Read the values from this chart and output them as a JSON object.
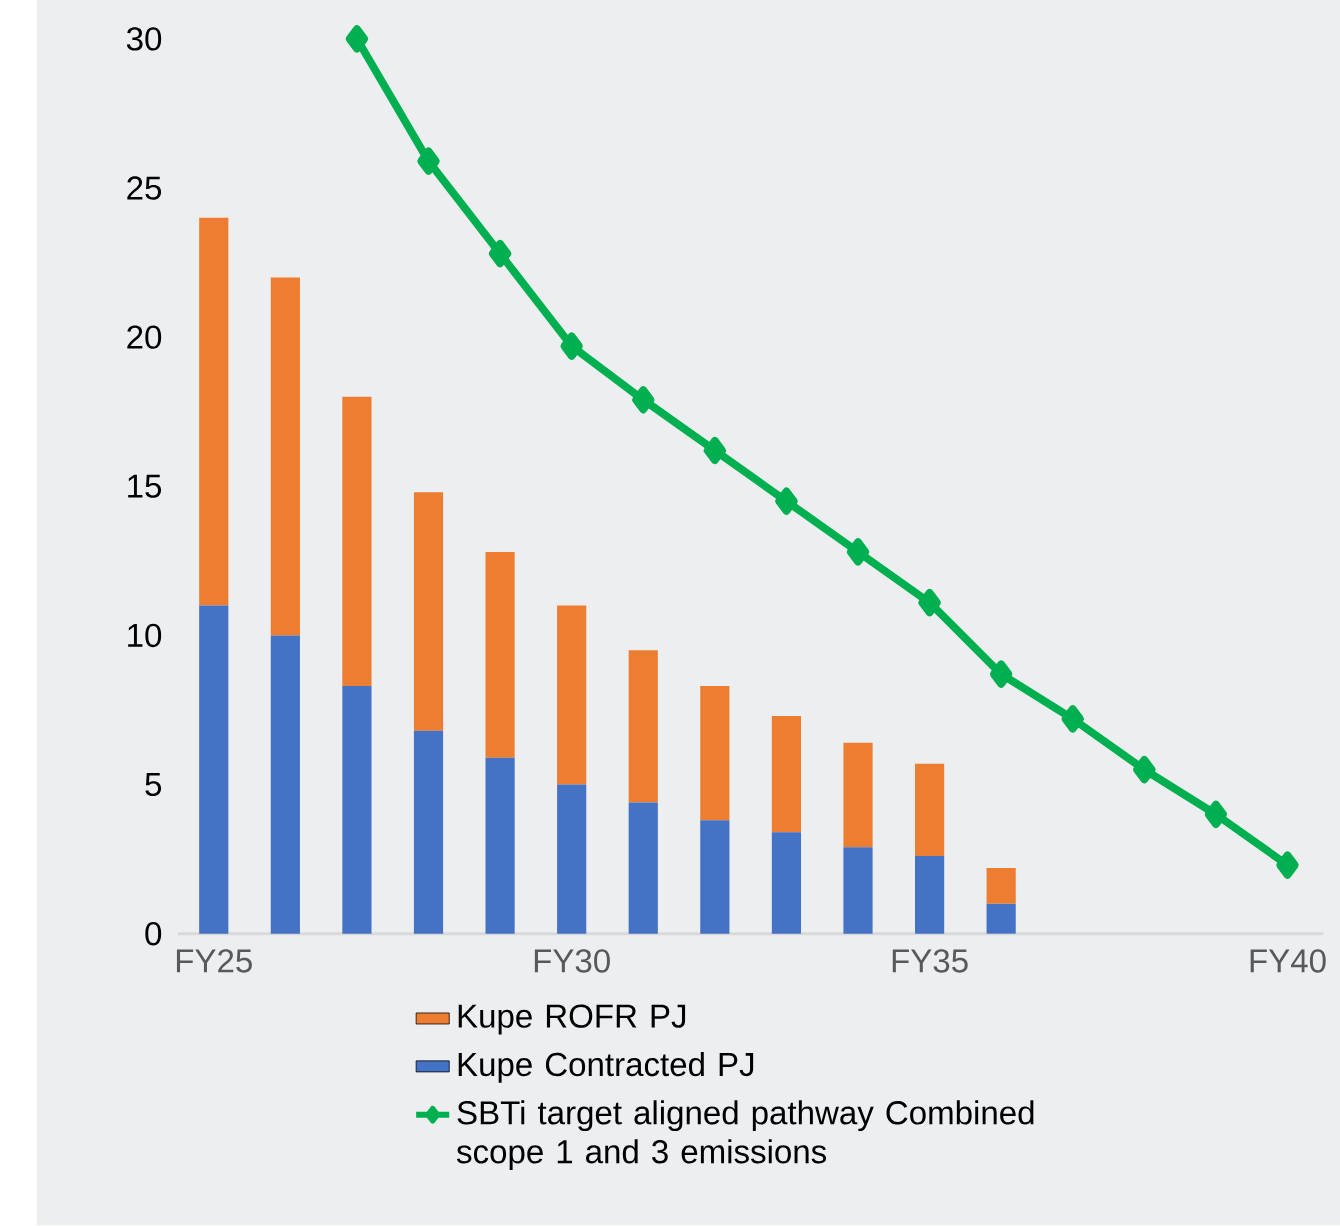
{
  "chart_data": {
    "type": "bar",
    "stacked": true,
    "categories": [
      "FY25",
      null,
      null,
      null,
      null,
      "FY30",
      null,
      null,
      null,
      null,
      "FY35",
      null,
      null,
      null,
      null,
      "FY40"
    ],
    "series": [
      {
        "name": "Kupe Contracted PJ",
        "color": "#4472c4",
        "values": [
          11.0,
          10.0,
          8.3,
          6.8,
          5.9,
          5.0,
          4.4,
          3.8,
          3.4,
          2.9,
          2.6,
          1.0,
          null,
          null,
          null,
          null
        ]
      },
      {
        "name": "Kupe ROFR PJ",
        "color": "#ed7d31",
        "values": [
          13.0,
          12.0,
          9.7,
          8.0,
          6.9,
          6.0,
          5.1,
          4.5,
          3.9,
          3.5,
          3.1,
          1.2,
          null,
          null,
          null,
          null
        ]
      },
      {
        "name": "SBTi target aligned pathway Combined scope 1 and 3 emissions",
        "type": "line",
        "color": "#00b050",
        "values": [
          null,
          null,
          30,
          25.9,
          22.8,
          19.7,
          17.9,
          16.2,
          14.5,
          12.8,
          11.1,
          8.7,
          7.2,
          5.5,
          4.0,
          2.3
        ]
      }
    ],
    "marker": "diamond",
    "ylim": [
      0,
      30
    ],
    "yticks": [
      0,
      5,
      10,
      15,
      20,
      25,
      30
    ],
    "legend": "bottom"
  }
}
